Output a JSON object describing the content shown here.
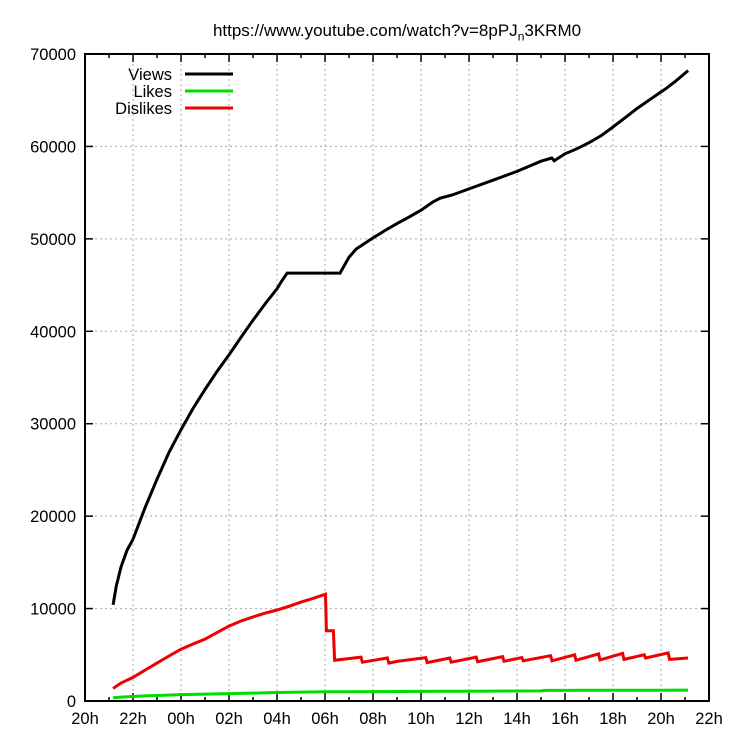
{
  "title": {
    "pre": "https://www.youtube.com/watch?v=8pPJ",
    "sub": "n",
    "post": "3KRM0"
  },
  "chart_data": {
    "type": "line",
    "title": "https://www.youtube.com/watch?v=8pPJ_n3KRM0",
    "grid": "dashed-gray",
    "grid_color": "#a8a8a8",
    "border_color": "#000000",
    "legend": {
      "position": "top-left-inside",
      "entries": [
        "Views",
        "Likes",
        "Dislikes"
      ]
    },
    "x_axis": {
      "unit": "hour of day",
      "range_hours": [
        0,
        26
      ],
      "tick_hours": [
        0,
        2,
        4,
        6,
        8,
        10,
        12,
        14,
        16,
        18,
        20,
        22,
        24,
        26
      ],
      "tick_labels": [
        "20h",
        "22h",
        "00h",
        "02h",
        "04h",
        "06h",
        "08h",
        "10h",
        "12h",
        "14h",
        "16h",
        "18h",
        "20h",
        "22h"
      ],
      "minor_tick_interval_hours": 1
    },
    "y_axis": {
      "range": [
        0,
        70000
      ],
      "tick_interval": 10000,
      "tick_labels": [
        "0",
        "10000",
        "20000",
        "30000",
        "40000",
        "50000",
        "60000",
        "70000"
      ]
    },
    "series": [
      {
        "name": "Views",
        "color": "#000000",
        "points": [
          [
            1.17,
            10400
          ],
          [
            1.3,
            12400
          ],
          [
            1.5,
            14500
          ],
          [
            1.75,
            16300
          ],
          [
            2,
            17500
          ],
          [
            2.5,
            20900
          ],
          [
            3,
            24000
          ],
          [
            3.5,
            26900
          ],
          [
            4,
            29350
          ],
          [
            4.5,
            31650
          ],
          [
            5,
            33700
          ],
          [
            5.5,
            35650
          ],
          [
            6,
            37450
          ],
          [
            6.5,
            39350
          ],
          [
            7,
            41200
          ],
          [
            7.5,
            42950
          ],
          [
            8,
            44600
          ],
          [
            8.2,
            45450
          ],
          [
            8.42,
            46300
          ],
          [
            10.63,
            46300
          ],
          [
            10.8,
            47100
          ],
          [
            11,
            48000
          ],
          [
            11.3,
            48900
          ],
          [
            12,
            50100
          ],
          [
            12.5,
            50900
          ],
          [
            13,
            51650
          ],
          [
            13.5,
            52350
          ],
          [
            14,
            53100
          ],
          [
            14.5,
            54000
          ],
          [
            14.8,
            54400
          ],
          [
            15.3,
            54750
          ],
          [
            16,
            55400
          ],
          [
            17,
            56350
          ],
          [
            18,
            57300
          ],
          [
            19,
            58400
          ],
          [
            19.45,
            58750
          ],
          [
            19.55,
            58450
          ],
          [
            20,
            59200
          ],
          [
            20.5,
            59750
          ],
          [
            21,
            60400
          ],
          [
            21.5,
            61150
          ],
          [
            22,
            62100
          ],
          [
            22.5,
            63100
          ],
          [
            23,
            64100
          ],
          [
            23.5,
            65000
          ],
          [
            24,
            65900
          ],
          [
            24.2,
            66250
          ],
          [
            24.6,
            67050
          ],
          [
            25.13,
            68200
          ]
        ]
      },
      {
        "name": "Likes",
        "color": "#00dd00",
        "points": [
          [
            1.17,
            350
          ],
          [
            1.5,
            420
          ],
          [
            2,
            490
          ],
          [
            2.5,
            550
          ],
          [
            3,
            600
          ],
          [
            4,
            690
          ],
          [
            5,
            750
          ],
          [
            6,
            800
          ],
          [
            7,
            860
          ],
          [
            8,
            920
          ],
          [
            9,
            960
          ],
          [
            10,
            1000
          ],
          [
            11,
            1010
          ],
          [
            12,
            1020
          ],
          [
            13,
            1030
          ],
          [
            14,
            1040
          ],
          [
            15,
            1050
          ],
          [
            16,
            1060
          ],
          [
            17,
            1070
          ],
          [
            18,
            1080
          ],
          [
            19,
            1090
          ],
          [
            19.2,
            1150
          ],
          [
            20,
            1150
          ],
          [
            21,
            1160
          ],
          [
            22,
            1160
          ],
          [
            23,
            1170
          ],
          [
            24,
            1170
          ],
          [
            25.13,
            1180
          ]
        ]
      },
      {
        "name": "Dislikes",
        "color": "#ee0000",
        "points": [
          [
            1.17,
            1350
          ],
          [
            1.5,
            1950
          ],
          [
            2,
            2550
          ],
          [
            2.5,
            3330
          ],
          [
            3,
            4100
          ],
          [
            3.5,
            4870
          ],
          [
            4,
            5600
          ],
          [
            4.5,
            6170
          ],
          [
            5,
            6700
          ],
          [
            5.5,
            7400
          ],
          [
            6,
            8100
          ],
          [
            6.5,
            8650
          ],
          [
            7,
            9100
          ],
          [
            7.5,
            9500
          ],
          [
            8,
            9850
          ],
          [
            8.5,
            10250
          ],
          [
            9,
            10700
          ],
          [
            9.5,
            11100
          ],
          [
            10.02,
            11550
          ],
          [
            10.06,
            7600
          ],
          [
            10.35,
            7600
          ],
          [
            10.4,
            4400
          ],
          [
            11.5,
            4750
          ],
          [
            11.56,
            4200
          ],
          [
            12.6,
            4650
          ],
          [
            12.66,
            4100
          ],
          [
            13,
            4280
          ],
          [
            14.2,
            4700
          ],
          [
            14.26,
            4150
          ],
          [
            15.2,
            4650
          ],
          [
            15.26,
            4200
          ],
          [
            16.3,
            4750
          ],
          [
            16.36,
            4250
          ],
          [
            17.4,
            4800
          ],
          [
            17.46,
            4300
          ],
          [
            18.2,
            4700
          ],
          [
            18.26,
            4350
          ],
          [
            19.4,
            4900
          ],
          [
            19.46,
            4350
          ],
          [
            20.4,
            5000
          ],
          [
            20.46,
            4400
          ],
          [
            21.4,
            5100
          ],
          [
            21.46,
            4450
          ],
          [
            22.4,
            5150
          ],
          [
            22.46,
            4500
          ],
          [
            23.3,
            5000
          ],
          [
            23.36,
            4650
          ],
          [
            24.3,
            5200
          ],
          [
            24.36,
            4500
          ],
          [
            25.13,
            4650
          ]
        ]
      }
    ]
  }
}
